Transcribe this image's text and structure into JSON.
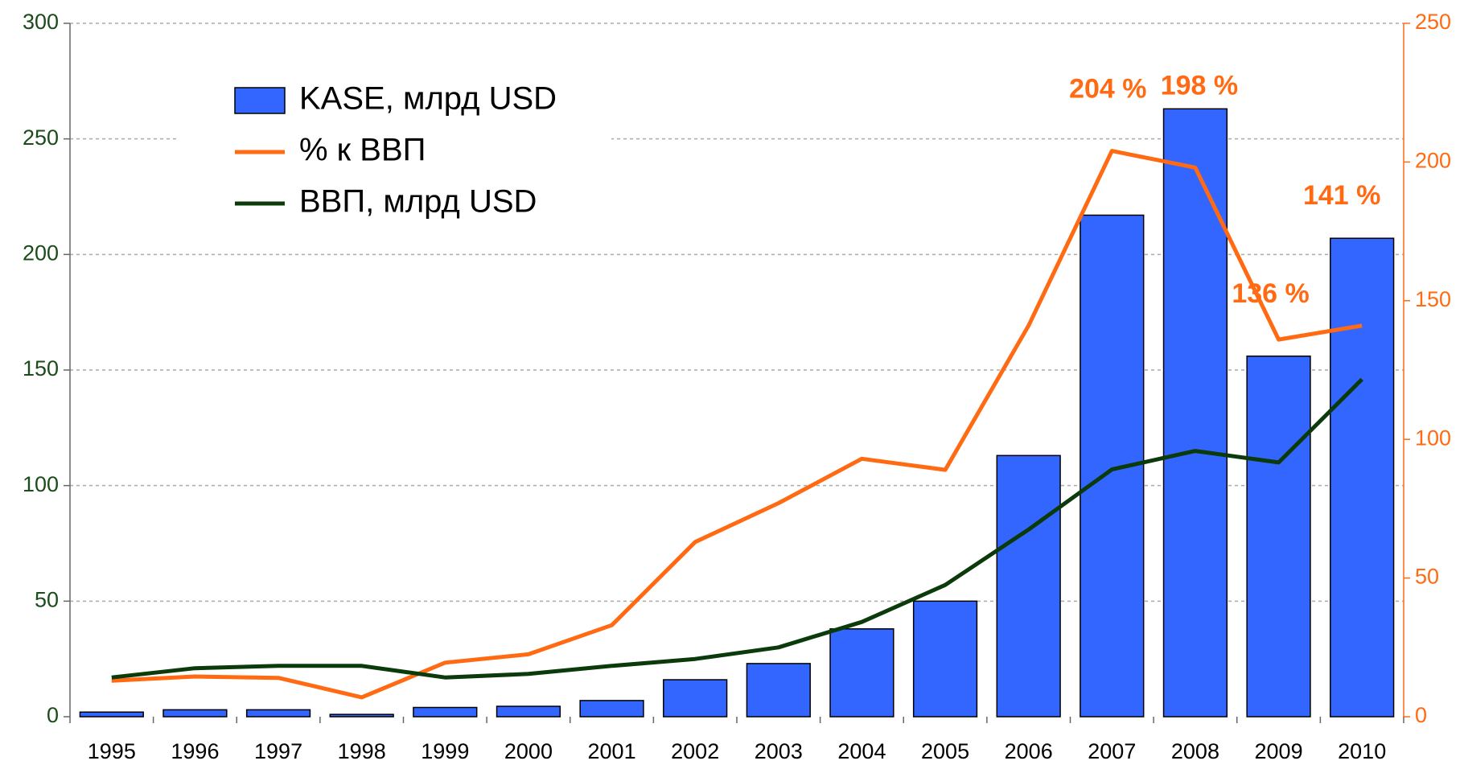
{
  "chart_data": {
    "type": "bar",
    "categories": [
      "1995",
      "1996",
      "1997",
      "1998",
      "1999",
      "2000",
      "2001",
      "2002",
      "2003",
      "2004",
      "2005",
      "2006",
      "2007",
      "2008",
      "2009",
      "2010"
    ],
    "series": [
      {
        "name": "KASE, млрд USD",
        "type": "bar",
        "color": "#3366ff",
        "values": [
          2,
          3,
          3,
          1,
          4,
          4.5,
          7,
          16,
          23,
          38,
          50,
          113,
          217,
          263,
          156,
          207
        ]
      },
      {
        "name": "% к ВВП",
        "type": "line",
        "axis": "y2",
        "color": "#ff6a13",
        "values": [
          13,
          14.5,
          14,
          7,
          19.5,
          22.5,
          33,
          63,
          77,
          93,
          89,
          141,
          204,
          198,
          136,
          141
        ],
        "value_labels": [
          null,
          null,
          null,
          null,
          null,
          null,
          null,
          null,
          null,
          null,
          null,
          null,
          "204 %",
          "198 %",
          "136 %",
          "141 %"
        ]
      },
      {
        "name": "ВВП, млрд USD",
        "type": "line",
        "color": "#0b3a0b",
        "values": [
          17,
          21,
          22,
          22,
          17,
          18.5,
          22,
          25,
          30,
          41,
          57,
          81,
          107,
          115,
          110,
          146
        ]
      }
    ],
    "ylim": [
      0,
      300
    ],
    "yticks": [
      0,
      50,
      100,
      150,
      200,
      250,
      300
    ],
    "y2lim": [
      0,
      250
    ],
    "y2ticks": [
      0,
      50,
      100,
      150,
      200,
      250
    ],
    "grid": true,
    "legend": "upper-left",
    "y_tick_color": "#1a4d1a",
    "y2_tick_color": "#ff6a13"
  }
}
